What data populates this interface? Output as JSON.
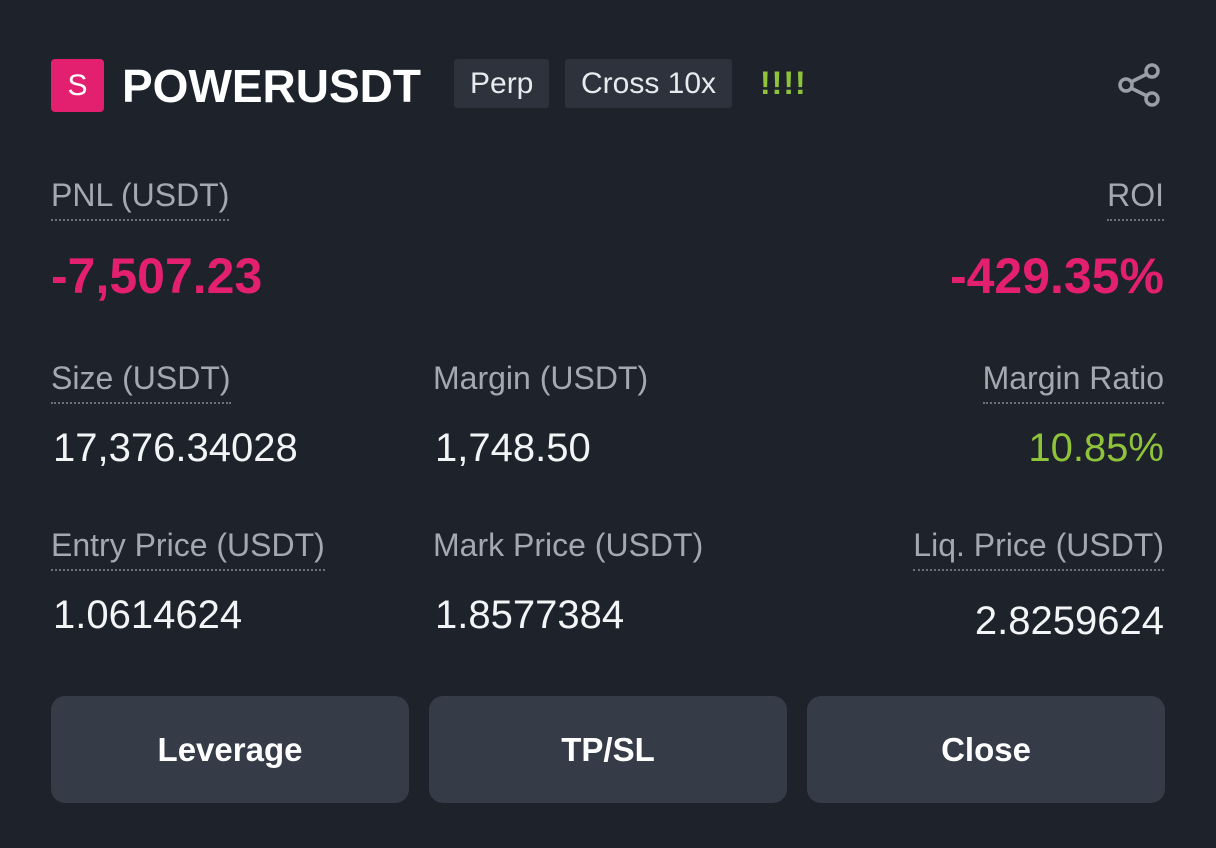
{
  "header": {
    "icon_letter": "S",
    "symbol": "POWERUSDT",
    "tags": [
      "Perp",
      "Cross 10x"
    ],
    "indicator": "!!!!"
  },
  "pnl": {
    "label": "PNL (USDT)",
    "value": "-7,507.23"
  },
  "roi": {
    "label": "ROI",
    "value": "-429.35%"
  },
  "fields": [
    {
      "label": "Size (USDT)",
      "value": "17,376.34028"
    },
    {
      "label": "Margin (USDT)",
      "value": "1,748.50"
    },
    {
      "label": "Margin Ratio",
      "value": "10.85%"
    },
    {
      "label": "Entry Price (USDT)",
      "value": "1.0614624"
    },
    {
      "label": "Mark Price (USDT)",
      "value": "1.8577384"
    },
    {
      "label": "Liq. Price (USDT)",
      "value": "2.8259624"
    }
  ],
  "buttons": [
    "Leverage",
    "TP/SL",
    "Close"
  ]
}
